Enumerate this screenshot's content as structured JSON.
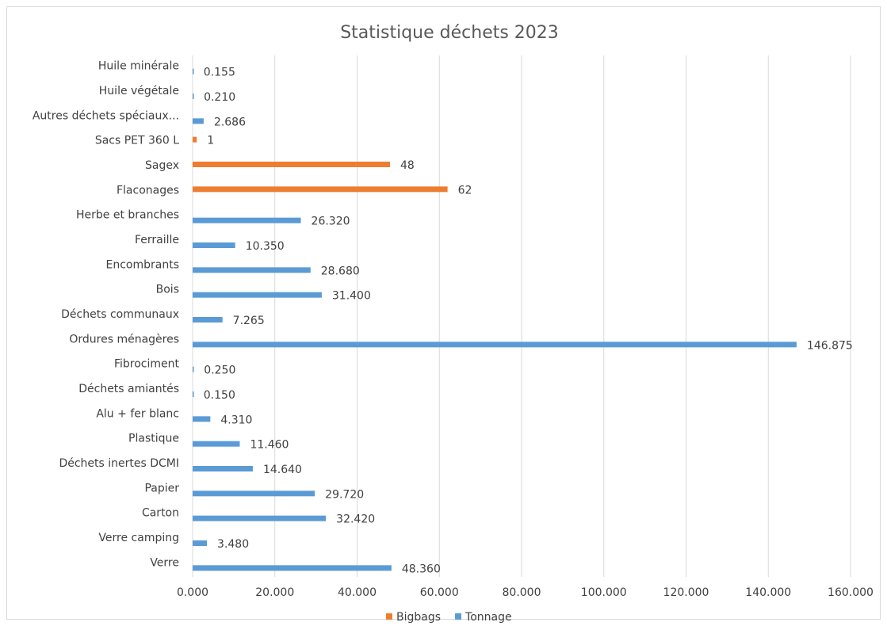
{
  "chart_data": {
    "type": "hbar",
    "title": "Statistique déchets 2023",
    "categories": [
      "Verre",
      "Verre camping",
      "Carton",
      "Papier",
      "Déchets inertes DCMI",
      "Plastique",
      "Alu + fer blanc",
      "Déchets amiantés",
      "Fibrociment",
      "Ordures ménagères",
      "Déchets communaux",
      "Bois",
      "Encombrants",
      "Ferraille",
      "Herbe et branches",
      "Flaconages",
      "Sagex",
      "Sacs PET 360 L",
      "Autres déchets spéciaux...",
      "Huile végétale",
      "Huile minérale"
    ],
    "series": [
      {
        "name": "Bigbags",
        "color": "#ed7d31",
        "values": [
          null,
          null,
          null,
          null,
          null,
          null,
          null,
          null,
          null,
          null,
          null,
          null,
          null,
          null,
          null,
          62,
          48,
          1,
          null,
          null,
          null
        ]
      },
      {
        "name": "Tonnage",
        "color": "#5b9bd5",
        "values": [
          48.36,
          3.48,
          32.42,
          29.72,
          14.64,
          11.46,
          4.31,
          0.15,
          0.25,
          146.875,
          7.265,
          31.4,
          28.68,
          10.35,
          26.32,
          null,
          null,
          null,
          2.686,
          0.21,
          0.155
        ],
        "value_labels": [
          "48.360",
          "3.480",
          "32.420",
          "29.720",
          "14.640",
          "11.460",
          "4.310",
          "0.150",
          "0.250",
          "146.875",
          "7.265",
          "31.400",
          "28.680",
          "10.350",
          "26.320",
          null,
          null,
          null,
          "2.686",
          "0.210",
          "0.155"
        ]
      }
    ],
    "xlim": [
      0,
      160
    ],
    "xticks": [
      {
        "value": 0,
        "label": "0.000"
      },
      {
        "value": 20,
        "label": "20.000"
      },
      {
        "value": 40,
        "label": "40.000"
      },
      {
        "value": 60,
        "label": "60.000"
      },
      {
        "value": 80,
        "label": "80.000"
      },
      {
        "value": 100,
        "label": "100.000"
      },
      {
        "value": 120,
        "label": "120.000"
      },
      {
        "value": 140,
        "label": "140.000"
      },
      {
        "value": 160,
        "label": "160.000"
      }
    ],
    "grid": true,
    "legend": "bottom"
  }
}
